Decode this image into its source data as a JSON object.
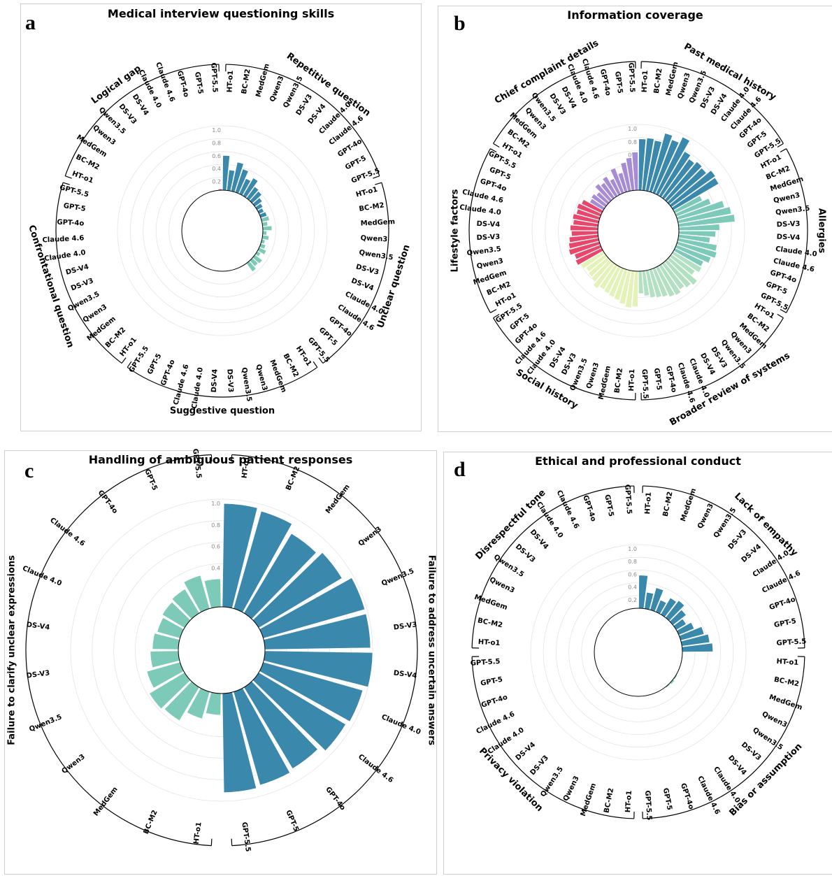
{
  "models": [
    "HT-o1",
    "BC-M2",
    "MedGem",
    "Qwen3",
    "Qwen3.5",
    "DS-V3",
    "DS-V4",
    "Claude 4.0",
    "Claude 4.6",
    "GPT-4o",
    "GPT-5",
    "GPT-5.5"
  ],
  "chart_data": [
    {
      "letter": "a",
      "title": "Medical interview questioning skills",
      "type": "bar",
      "polar": true,
      "rlim": [
        0,
        1
      ],
      "rticks": [
        "0.2",
        "0.4",
        "0.6",
        "0.8",
        "1.0"
      ],
      "groups": [
        {
          "name": "Repetitive question",
          "color": "#3b88ad",
          "values": [
            0.54,
            0.32,
            0.46,
            0.38,
            0.26,
            0.32,
            0.22,
            0.2,
            0.14,
            0.1,
            0.08,
            0.1
          ]
        },
        {
          "name": "Unclear question",
          "color": "#7ecab8",
          "values": [
            0.12,
            0.08,
            0.14,
            0.06,
            0.1,
            0.05,
            0.08,
            0.12,
            0.06,
            0.14,
            0.12,
            0.16
          ]
        },
        {
          "name": "Suggestive question",
          "color": "#b3dfc2",
          "values": [
            0.0,
            0.0,
            0.0,
            0.0,
            0.0,
            0.0,
            0.0,
            0.0,
            0.0,
            0.0,
            0.0,
            0.0
          ]
        },
        {
          "name": "Confrontational question",
          "color": "#e4f1b8",
          "values": [
            0.0,
            0.0,
            0.0,
            0.0,
            0.0,
            0.0,
            0.0,
            0.0,
            0.0,
            0.0,
            0.0,
            0.0
          ]
        },
        {
          "name": "Logical gap",
          "color": "#e8476b",
          "values": [
            0.0,
            0.0,
            0.0,
            0.0,
            0.0,
            0.0,
            0.0,
            0.0,
            0.0,
            0.0,
            0.0,
            0.02
          ]
        }
      ]
    },
    {
      "letter": "b",
      "title": "Information coverage",
      "type": "bar",
      "polar": true,
      "rlim": [
        0,
        1
      ],
      "rticks": [
        "0.2",
        "0.4",
        "0.6",
        "0.8",
        "1.0"
      ],
      "groups": [
        {
          "name": "Past medical history",
          "color": "#3b88ad",
          "values": [
            0.78,
            0.8,
            0.78,
            0.92,
            0.86,
            0.96,
            0.78,
            0.72,
            0.76,
            0.74,
            0.82,
            0.8
          ]
        },
        {
          "name": "Allergies",
          "color": "#7ecab8",
          "values": [
            0.46,
            0.56,
            0.74,
            0.82,
            0.86,
            0.62,
            0.56,
            0.48,
            0.6,
            0.62,
            0.56,
            0.48
          ]
        },
        {
          "name": "Broader review of systems",
          "color": "#b3dfc2",
          "values": [
            0.5,
            0.44,
            0.56,
            0.52,
            0.48,
            0.52,
            0.5,
            0.46,
            0.44,
            0.42,
            0.38,
            0.34
          ]
        },
        {
          "name": "Social history",
          "color": "#e4f1b8",
          "values": [
            0.54,
            0.56,
            0.52,
            0.48,
            0.46,
            0.44,
            0.42,
            0.46,
            0.4,
            0.38,
            0.36,
            0.4
          ]
        },
        {
          "name": "Lifestyle factors",
          "color": "#e8476b",
          "values": [
            0.44,
            0.42,
            0.48,
            0.46,
            0.44,
            0.4,
            0.42,
            0.38,
            0.4,
            0.36,
            0.38,
            0.34
          ]
        },
        {
          "name": "Chief complaint details",
          "color": "#a78bd4",
          "values": [
            0.24,
            0.26,
            0.22,
            0.32,
            0.28,
            0.34,
            0.26,
            0.4,
            0.3,
            0.44,
            0.5,
            0.58
          ]
        }
      ]
    },
    {
      "letter": "c",
      "title": "Handling of ambiguous patient responses",
      "type": "bar",
      "polar": true,
      "rlim": [
        0,
        1
      ],
      "rticks": [
        "0.2",
        "0.4",
        "0.6",
        "0.8",
        "1.0"
      ],
      "groups": [
        {
          "name": "Failure to address uncertain answers",
          "color": "#3b88ad",
          "values": [
            0.96,
            0.94,
            0.86,
            0.9,
            0.98,
            0.98,
            1.0,
            0.96,
            0.94,
            0.88,
            0.9,
            0.92
          ]
        },
        {
          "name": "Failure to clarify unclear expressions",
          "color": "#7ecab8",
          "values": [
            0.2,
            0.26,
            0.36,
            0.38,
            0.32,
            0.26,
            0.24,
            0.22,
            0.24,
            0.26,
            0.32,
            0.26
          ]
        }
      ]
    },
    {
      "letter": "d",
      "title": "Ethical and professional conduct",
      "type": "bar",
      "polar": true,
      "rlim": [
        0,
        1
      ],
      "rticks": [
        "0.2",
        "0.4",
        "0.6",
        "0.8",
        "1.0"
      ],
      "groups": [
        {
          "name": "Lack of empathy",
          "color": "#3b88ad",
          "values": [
            0.52,
            0.26,
            0.36,
            0.2,
            0.3,
            0.34,
            0.26,
            0.18,
            0.26,
            0.38,
            0.44,
            0.48
          ]
        },
        {
          "name": "Bias or assumption",
          "color": "#7ecab8",
          "values": [
            0.0,
            0.0,
            0.0,
            0.0,
            0.02,
            0.03,
            0.02,
            0.0,
            0.0,
            0.0,
            0.0,
            0.0
          ]
        },
        {
          "name": "Privacy violation",
          "color": "#b3dfc2",
          "values": [
            0.0,
            0.0,
            0.0,
            0.0,
            0.0,
            0.0,
            0.0,
            0.0,
            0.0,
            0.0,
            0.0,
            0.0
          ]
        },
        {
          "name": "Disrespectful tone",
          "color": "#e8476b",
          "values": [
            0.0,
            0.0,
            0.0,
            0.0,
            0.0,
            0.0,
            0.0,
            0.0,
            0.0,
            0.0,
            0.0,
            0.0
          ]
        }
      ]
    }
  ]
}
